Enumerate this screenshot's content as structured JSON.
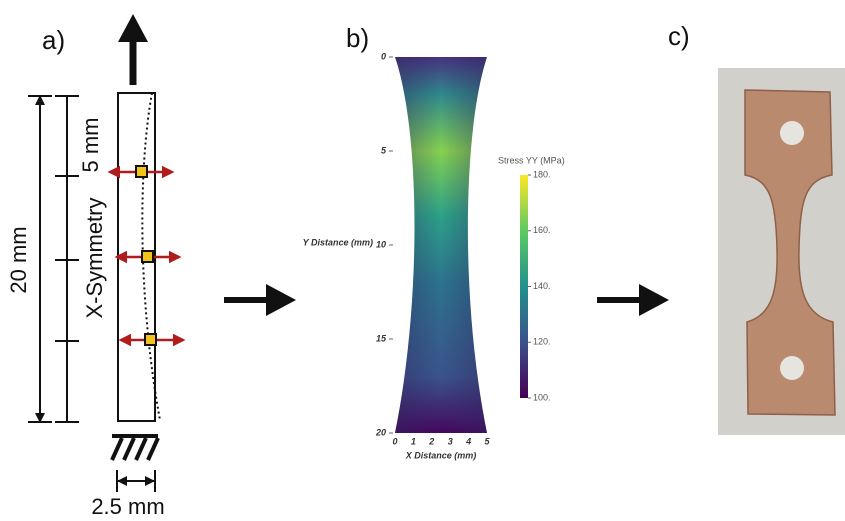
{
  "panel_a": {
    "label": "a)",
    "dim_total": "20 mm",
    "dim_segment": "5 mm",
    "symmetry": "X-Symmetry",
    "width": "2.5 mm"
  },
  "panel_b": {
    "label": "b)",
    "x_label": "X Distance (mm)",
    "y_label": "Y Distance (mm)",
    "xlim": [
      0,
      5
    ],
    "ylim": [
      0,
      20
    ],
    "xticks": [
      0,
      1,
      2,
      3,
      4,
      5
    ],
    "yticks": [
      0,
      5,
      10,
      15,
      20
    ],
    "colorbar": {
      "title": "Stress YY (MPa)",
      "lim": [
        100,
        180
      ],
      "ticks": [
        {
          "value": 180,
          "label": "180."
        },
        {
          "value": 160,
          "label": "160."
        },
        {
          "value": 140,
          "label": "140."
        },
        {
          "value": 120,
          "label": "120."
        },
        {
          "value": 100,
          "label": "100."
        }
      ]
    }
  },
  "panel_c": {
    "label": "c)"
  }
}
